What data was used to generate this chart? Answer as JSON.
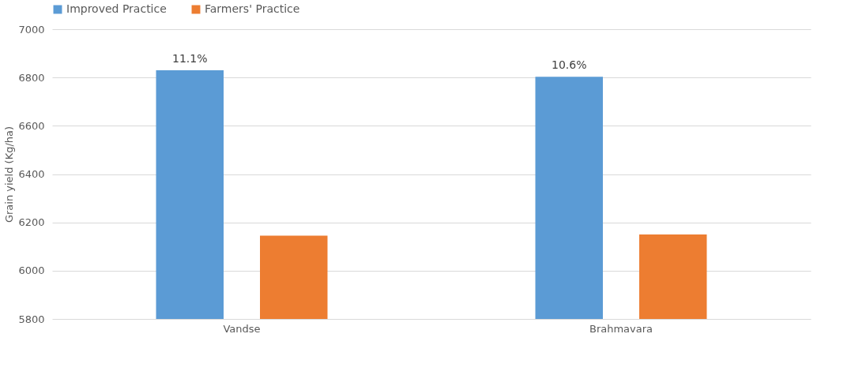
{
  "chart_data": {
    "type": "bar",
    "categories": [
      "Vandse",
      "Brahmavara"
    ],
    "ylabel": "Grain yield (Kg/ha)",
    "ylim": [
      5800,
      7000
    ],
    "yticks": [
      5800,
      6000,
      6200,
      6400,
      6600,
      6800,
      7000
    ],
    "grid": "y",
    "legend": "top",
    "series": [
      {
        "name": "Improved Practice",
        "color": "#5b9bd5",
        "values": [
          6830,
          6803
        ]
      },
      {
        "name": "Farmers' Practice",
        "color": "#ed7d31",
        "values": [
          6145,
          6150
        ]
      }
    ],
    "annotations": [
      "11.1%",
      "10.6%"
    ]
  }
}
